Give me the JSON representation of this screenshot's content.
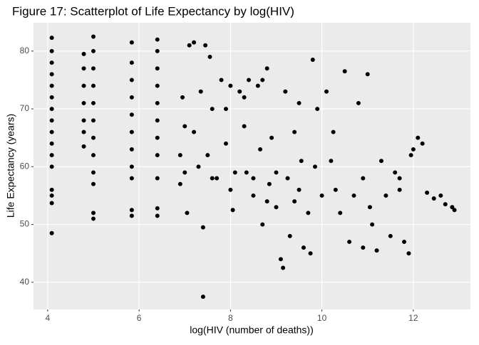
{
  "chart_data": {
    "type": "scatter",
    "title": "Figure 17: Scatterplot of Life Expectancy by log(HIV)",
    "x_label": "log(HIV (number of deaths))",
    "y_label": "Life Expectancy (years)",
    "color": "#000000",
    "grid": true,
    "xlim": [
      3.69,
      13.25
    ],
    "ylim": [
      35.3,
      84.9
    ],
    "xticks": [
      4,
      6,
      8,
      10,
      12
    ],
    "yticks": [
      40,
      50,
      60,
      70,
      80
    ],
    "x": [
      4.09,
      4.09,
      4.09,
      4.09,
      4.09,
      4.09,
      4.09,
      4.09,
      4.09,
      4.09,
      4.09,
      4.09,
      4.09,
      4.09,
      4.09,
      4.09,
      4.79,
      4.79,
      4.79,
      4.79,
      4.79,
      4.79,
      4.79,
      5.0,
      5.0,
      5.0,
      5.0,
      5.0,
      5.0,
      5.0,
      5.0,
      5.0,
      5.0,
      5.0,
      5.0,
      5.84,
      5.84,
      5.84,
      5.84,
      5.84,
      5.84,
      5.84,
      5.84,
      5.84,
      5.84,
      5.84,
      6.4,
      6.4,
      6.4,
      6.4,
      6.4,
      6.4,
      6.4,
      6.4,
      6.4,
      6.4,
      6.4,
      6.9,
      6.9,
      6.95,
      7.0,
      7.05,
      7.1,
      7.2,
      7.3,
      7.35,
      7.4,
      7.4,
      7.45,
      7.5,
      7.55,
      7.6,
      7.7,
      7.8,
      7.9,
      8.0,
      8.05,
      8.1,
      8.2,
      8.3,
      8.35,
      8.4,
      8.5,
      8.6,
      8.65,
      8.7,
      8.8,
      8.85,
      8.9,
      9.0,
      9.1,
      9.15,
      9.2,
      9.25,
      9.3,
      9.4,
      9.5,
      9.55,
      9.6,
      9.7,
      9.75,
      9.8,
      9.85,
      9.9,
      10.0,
      10.1,
      10.2,
      10.25,
      10.4,
      10.5,
      10.6,
      10.7,
      10.8,
      10.9,
      11.0,
      11.05,
      11.1,
      11.2,
      11.3,
      11.4,
      11.5,
      11.6,
      11.7,
      11.8,
      11.9,
      11.95,
      12.0,
      12.1,
      12.2,
      12.3,
      12.45,
      12.6,
      12.7,
      12.85,
      12.9,
      8.0,
      8.5,
      9.0,
      9.5,
      7.2,
      7.9,
      8.3,
      8.7,
      9.4,
      10.3,
      11.7,
      10.9,
      7.0,
      7.6,
      8.8
    ],
    "y": [
      48.5,
      53.7,
      55,
      56,
      60,
      62,
      64,
      66,
      68,
      70,
      72,
      74,
      76,
      78,
      80,
      82.3,
      63.5,
      66,
      68,
      71,
      74,
      77,
      79.5,
      51,
      52,
      57,
      59,
      62,
      65,
      68,
      71,
      74,
      77,
      80,
      82.5,
      51.5,
      52.5,
      58,
      60,
      63,
      66,
      69,
      72,
      75,
      78,
      81.5,
      51.5,
      52.8,
      58,
      62,
      65,
      68,
      71,
      74,
      77,
      80,
      82,
      57,
      62,
      72,
      67,
      52,
      81,
      81.5,
      60,
      73,
      37.5,
      49.5,
      81,
      62,
      79,
      70,
      58,
      75,
      64,
      74,
      52.5,
      59,
      73,
      67,
      59,
      75,
      55,
      74,
      63,
      50,
      77,
      57,
      65,
      53,
      44,
      42.5,
      73,
      58,
      48,
      54,
      71,
      61,
      46,
      52,
      45,
      78.5,
      60,
      70,
      55,
      73,
      61,
      66,
      52,
      76.5,
      47,
      55,
      71,
      46,
      76,
      53,
      50,
      45.5,
      61,
      55,
      48,
      59,
      56,
      47,
      45,
      62,
      63,
      65,
      64,
      55.5,
      54.5,
      55,
      53.5,
      53,
      52.5,
      56,
      58,
      59,
      56,
      66,
      70,
      72,
      75,
      66,
      56,
      58,
      58,
      59,
      58,
      54
    ]
  }
}
